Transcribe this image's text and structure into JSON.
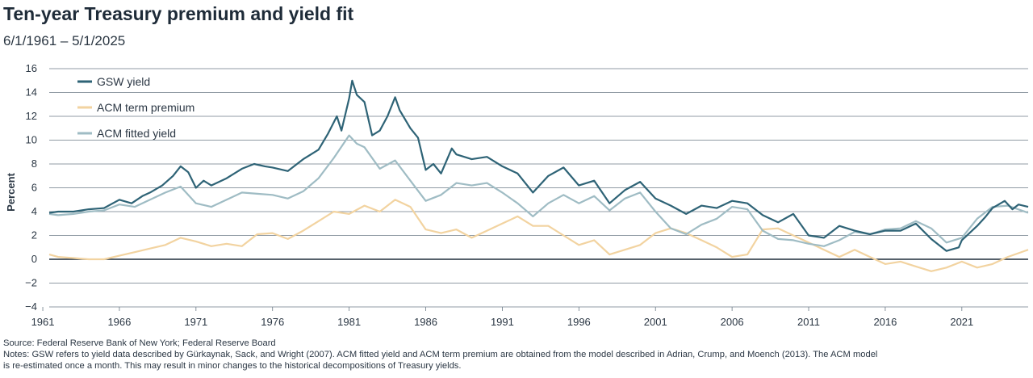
{
  "header": {
    "title": "Ten-year Treasury premium and yield fit",
    "subtitle": "6/1/1961 – 5/1/2025"
  },
  "footer": {
    "source": "Source: Federal Reserve Bank of New York; Federal Reserve Board",
    "notes_line1": "Notes: GSW refers to yield data described by Gürkaynak, Sack, and Wright (2007). ACM fitted yield and ACM term premium are obtained from the model described in Adrian, Crump, and Moench (2013). The ACM model",
    "notes_line2": "is re-estimated once a month. This may result in minor changes to the historical decompositions of Treasury yields."
  },
  "colors": {
    "gsw": "#2e6376",
    "acm_tp": "#f2d3a0",
    "acm_fit": "#9fbcc4",
    "grid": "#6b7a86",
    "zero": "#1f2d3a"
  },
  "chart_data": {
    "type": "line",
    "title": "Ten-year Treasury premium and yield fit",
    "xlabel": "",
    "ylabel": "Percent",
    "xlim": [
      1961.42,
      2025.33
    ],
    "ylim": [
      -4,
      16
    ],
    "yticks": [
      16,
      14,
      12,
      10,
      8,
      6,
      4,
      2,
      0,
      -2,
      -4
    ],
    "xticks": [
      1961,
      1966,
      1971,
      1976,
      1981,
      1986,
      1991,
      1996,
      2001,
      2006,
      2011,
      2016,
      2021
    ],
    "grid": "horizontal",
    "legend_position": "top-left",
    "series": [
      {
        "name": "GSW yield",
        "key": "gsw",
        "points": [
          [
            1961.42,
            3.9
          ],
          [
            1962,
            4.0
          ],
          [
            1963,
            4.0
          ],
          [
            1964,
            4.2
          ],
          [
            1965,
            4.3
          ],
          [
            1966,
            5.0
          ],
          [
            1966.8,
            4.7
          ],
          [
            1967.5,
            5.3
          ],
          [
            1968,
            5.6
          ],
          [
            1968.8,
            6.2
          ],
          [
            1969.5,
            7.0
          ],
          [
            1970,
            7.8
          ],
          [
            1970.5,
            7.3
          ],
          [
            1971,
            6.0
          ],
          [
            1971.5,
            6.6
          ],
          [
            1972,
            6.2
          ],
          [
            1973,
            6.8
          ],
          [
            1974,
            7.6
          ],
          [
            1974.8,
            8.0
          ],
          [
            1975.5,
            7.8
          ],
          [
            1976,
            7.7
          ],
          [
            1977,
            7.4
          ],
          [
            1978,
            8.4
          ],
          [
            1979,
            9.2
          ],
          [
            1979.6,
            10.5
          ],
          [
            1980.2,
            12.0
          ],
          [
            1980.5,
            10.8
          ],
          [
            1981,
            13.5
          ],
          [
            1981.2,
            15.0
          ],
          [
            1981.5,
            13.8
          ],
          [
            1982,
            13.2
          ],
          [
            1982.5,
            10.4
          ],
          [
            1983,
            10.8
          ],
          [
            1983.5,
            12.0
          ],
          [
            1984,
            13.6
          ],
          [
            1984.3,
            12.5
          ],
          [
            1985,
            11.0
          ],
          [
            1985.5,
            10.2
          ],
          [
            1986,
            7.5
          ],
          [
            1986.5,
            8.0
          ],
          [
            1987,
            7.2
          ],
          [
            1987.7,
            9.3
          ],
          [
            1988,
            8.8
          ],
          [
            1989,
            8.4
          ],
          [
            1990,
            8.6
          ],
          [
            1991,
            7.8
          ],
          [
            1992,
            7.2
          ],
          [
            1993,
            5.6
          ],
          [
            1994,
            7.0
          ],
          [
            1995,
            7.7
          ],
          [
            1996,
            6.2
          ],
          [
            1997,
            6.6
          ],
          [
            1998,
            4.7
          ],
          [
            1999,
            5.8
          ],
          [
            2000,
            6.5
          ],
          [
            2001,
            5.1
          ],
          [
            2002,
            4.5
          ],
          [
            2003,
            3.8
          ],
          [
            2004,
            4.5
          ],
          [
            2005,
            4.3
          ],
          [
            2006,
            4.9
          ],
          [
            2007,
            4.7
          ],
          [
            2008,
            3.7
          ],
          [
            2009,
            3.1
          ],
          [
            2010,
            3.8
          ],
          [
            2011,
            2.0
          ],
          [
            2012,
            1.8
          ],
          [
            2013,
            2.8
          ],
          [
            2014,
            2.4
          ],
          [
            2015,
            2.1
          ],
          [
            2016,
            2.4
          ],
          [
            2017,
            2.4
          ],
          [
            2018,
            3.0
          ],
          [
            2019,
            1.7
          ],
          [
            2020,
            0.7
          ],
          [
            2020.8,
            1.0
          ],
          [
            2021,
            1.6
          ],
          [
            2022,
            2.8
          ],
          [
            2022.5,
            3.5
          ],
          [
            2023,
            4.3
          ],
          [
            2023.8,
            4.9
          ],
          [
            2024.3,
            4.2
          ],
          [
            2024.7,
            4.6
          ],
          [
            2025.33,
            4.4
          ]
        ]
      },
      {
        "name": "ACM term premium",
        "key": "acm_tp",
        "points": [
          [
            1961.42,
            0.4
          ],
          [
            1962,
            0.2
          ],
          [
            1963,
            0.1
          ],
          [
            1964,
            0.0
          ],
          [
            1965,
            0.0
          ],
          [
            1966,
            0.3
          ],
          [
            1967,
            0.6
          ],
          [
            1968,
            0.9
          ],
          [
            1969,
            1.2
          ],
          [
            1970,
            1.8
          ],
          [
            1971,
            1.5
          ],
          [
            1972,
            1.1
          ],
          [
            1973,
            1.3
          ],
          [
            1974,
            1.1
          ],
          [
            1975,
            2.1
          ],
          [
            1976,
            2.2
          ],
          [
            1977,
            1.7
          ],
          [
            1978,
            2.4
          ],
          [
            1979,
            3.2
          ],
          [
            1980,
            4.0
          ],
          [
            1981,
            3.8
          ],
          [
            1982,
            4.5
          ],
          [
            1983,
            4.0
          ],
          [
            1984,
            5.0
          ],
          [
            1985,
            4.4
          ],
          [
            1986,
            2.5
          ],
          [
            1987,
            2.2
          ],
          [
            1988,
            2.5
          ],
          [
            1989,
            1.8
          ],
          [
            1990,
            2.4
          ],
          [
            1991,
            3.0
          ],
          [
            1992,
            3.6
          ],
          [
            1993,
            2.8
          ],
          [
            1994,
            2.8
          ],
          [
            1995,
            2.0
          ],
          [
            1996,
            1.2
          ],
          [
            1997,
            1.6
          ],
          [
            1998,
            0.4
          ],
          [
            1999,
            0.8
          ],
          [
            2000,
            1.2
          ],
          [
            2001,
            2.2
          ],
          [
            2002,
            2.6
          ],
          [
            2003,
            2.2
          ],
          [
            2004,
            1.6
          ],
          [
            2005,
            1.0
          ],
          [
            2006,
            0.2
          ],
          [
            2007,
            0.4
          ],
          [
            2008,
            2.5
          ],
          [
            2009,
            2.6
          ],
          [
            2010,
            2.0
          ],
          [
            2011,
            1.4
          ],
          [
            2012,
            0.8
          ],
          [
            2013,
            0.2
          ],
          [
            2014,
            0.8
          ],
          [
            2015,
            0.2
          ],
          [
            2016,
            -0.4
          ],
          [
            2017,
            -0.2
          ],
          [
            2018,
            -0.6
          ],
          [
            2019,
            -1.0
          ],
          [
            2020,
            -0.7
          ],
          [
            2021,
            -0.2
          ],
          [
            2022,
            -0.7
          ],
          [
            2023,
            -0.4
          ],
          [
            2024,
            0.2
          ],
          [
            2025.33,
            0.8
          ]
        ]
      },
      {
        "name": "ACM fitted yield",
        "key": "acm_fit",
        "points": [
          [
            1961.42,
            3.8
          ],
          [
            1962,
            3.7
          ],
          [
            1963,
            3.8
          ],
          [
            1964,
            4.0
          ],
          [
            1965,
            4.1
          ],
          [
            1966,
            4.6
          ],
          [
            1967,
            4.4
          ],
          [
            1968,
            5.0
          ],
          [
            1969,
            5.6
          ],
          [
            1970,
            6.1
          ],
          [
            1971,
            4.7
          ],
          [
            1972,
            4.4
          ],
          [
            1973,
            5.0
          ],
          [
            1974,
            5.6
          ],
          [
            1975,
            5.5
          ],
          [
            1976,
            5.4
          ],
          [
            1977,
            5.1
          ],
          [
            1978,
            5.7
          ],
          [
            1979,
            6.8
          ],
          [
            1980,
            8.5
          ],
          [
            1981,
            10.4
          ],
          [
            1981.5,
            9.7
          ],
          [
            1982,
            9.4
          ],
          [
            1983,
            7.6
          ],
          [
            1984,
            8.3
          ],
          [
            1985,
            6.6
          ],
          [
            1986,
            4.9
          ],
          [
            1987,
            5.4
          ],
          [
            1988,
            6.4
          ],
          [
            1989,
            6.2
          ],
          [
            1990,
            6.4
          ],
          [
            1991,
            5.6
          ],
          [
            1992,
            4.7
          ],
          [
            1993,
            3.6
          ],
          [
            1994,
            4.7
          ],
          [
            1995,
            5.4
          ],
          [
            1996,
            4.7
          ],
          [
            1997,
            5.3
          ],
          [
            1998,
            4.1
          ],
          [
            1999,
            5.1
          ],
          [
            2000,
            5.6
          ],
          [
            2001,
            4.0
          ],
          [
            2002,
            2.6
          ],
          [
            2003,
            2.1
          ],
          [
            2004,
            2.9
          ],
          [
            2005,
            3.4
          ],
          [
            2006,
            4.4
          ],
          [
            2007,
            4.2
          ],
          [
            2008,
            2.4
          ],
          [
            2009,
            1.7
          ],
          [
            2010,
            1.6
          ],
          [
            2011,
            1.3
          ],
          [
            2012,
            1.1
          ],
          [
            2013,
            1.6
          ],
          [
            2014,
            2.3
          ],
          [
            2015,
            2.1
          ],
          [
            2016,
            2.5
          ],
          [
            2017,
            2.6
          ],
          [
            2018,
            3.2
          ],
          [
            2019,
            2.6
          ],
          [
            2020,
            1.4
          ],
          [
            2021,
            1.8
          ],
          [
            2022,
            3.4
          ],
          [
            2023,
            4.4
          ],
          [
            2024,
            4.5
          ],
          [
            2025.33,
            3.9
          ]
        ]
      }
    ]
  }
}
